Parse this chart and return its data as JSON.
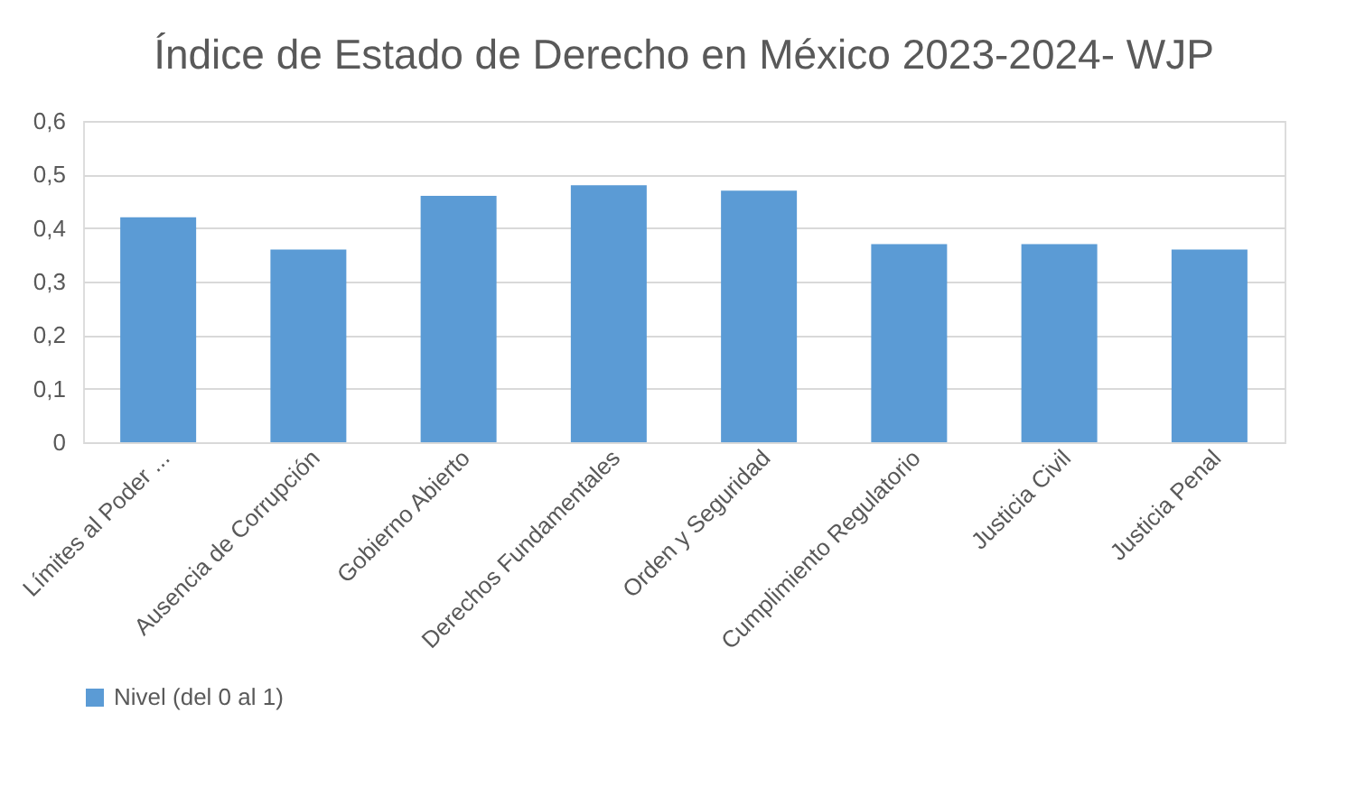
{
  "chart_data": {
    "type": "bar",
    "title": "Índice de Estado de Derecho en México 2023-2024- WJP",
    "categories": [
      "Límites al Poder ...",
      "Ausencia de Corrupción",
      "Gobierno Abierto",
      "Derechos Fundamentales",
      "Orden y Seguridad",
      "Cumplimiento Regulatorio",
      "Justicia Civil",
      "Justicia Penal"
    ],
    "series": [
      {
        "name": "Nivel (del 0 al 1)",
        "color": "#5b9bd5",
        "values": [
          0.42,
          0.36,
          0.46,
          0.48,
          0.47,
          0.37,
          0.37,
          0.36
        ]
      }
    ],
    "ylim": [
      0,
      0.6
    ],
    "yticks": [
      0,
      {
        "value": 0.1,
        "label": "0,1"
      },
      {
        "value": 0.2,
        "label": "0,2"
      },
      {
        "value": 0.3,
        "label": "0,3"
      },
      {
        "value": 0.4,
        "label": "0,4"
      },
      {
        "value": 0.5,
        "label": "0,5"
      },
      {
        "value": 0.6,
        "label": "0,6"
      }
    ],
    "grid": "y",
    "legend": "bottom"
  }
}
